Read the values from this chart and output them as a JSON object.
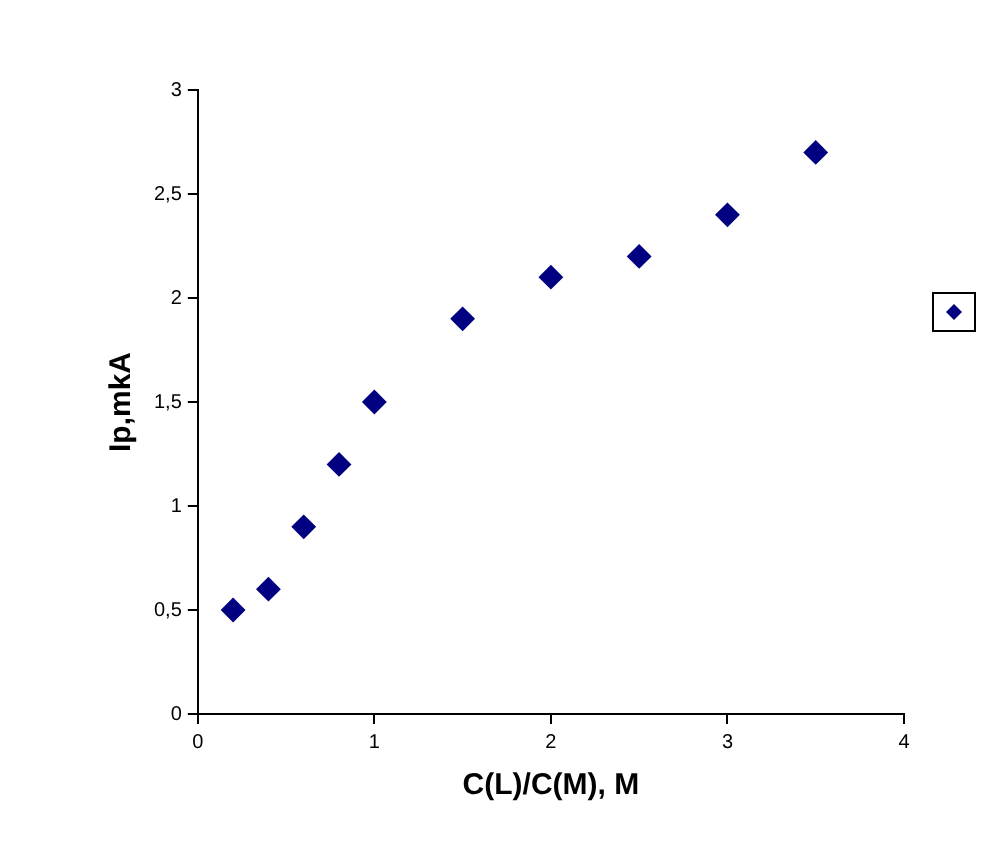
{
  "chart_data": {
    "type": "scatter",
    "xlabel": "C(L)/C(M), M",
    "ylabel": "Ip,mkA",
    "x": [
      0.2,
      0.4,
      0.6,
      0.8,
      1,
      1.5,
      2,
      2.5,
      3,
      3.5
    ],
    "series": [
      {
        "color": "#000080",
        "values": [
          0.5,
          0.6,
          0.9,
          1.2,
          1.5,
          1.9,
          2.1,
          2.2,
          2.4,
          2.7
        ]
      }
    ],
    "xlim": [
      0,
      4
    ],
    "xticks": [
      0,
      1,
      2,
      3,
      4
    ],
    "ylim": [
      0,
      3
    ],
    "yticks": [
      0,
      {
        "value": 0.5,
        "label": "0,5"
      },
      1,
      {
        "value": 1.5,
        "label": "1,5"
      },
      2,
      {
        "value": 2.5,
        "label": "2,5"
      },
      3
    ],
    "grid": false,
    "marker": "diamond"
  }
}
